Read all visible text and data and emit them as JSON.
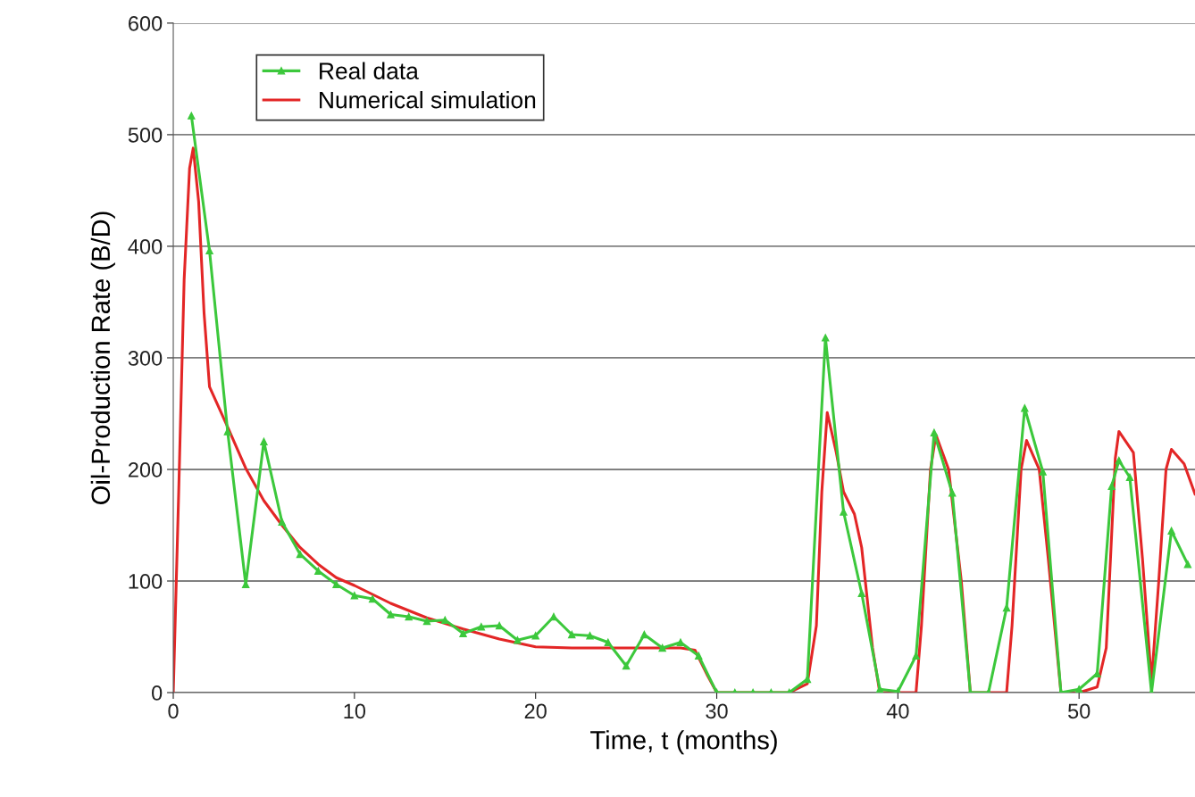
{
  "chart_data": {
    "type": "line",
    "xlabel": "Time, t (months)",
    "ylabel": "Oil-Production Rate (B/D)",
    "xlim": [
      0,
      56.4
    ],
    "xticks": [
      0,
      10,
      20,
      30,
      40,
      50
    ],
    "ylim": [
      0,
      600
    ],
    "yticks": [
      0,
      100,
      200,
      300,
      400,
      500,
      600
    ],
    "grid": "y",
    "legend": "top left",
    "series": [
      {
        "name": "Real data",
        "color": "#3cc83c",
        "marker": "triangle",
        "x": [
          1,
          2,
          3,
          4,
          5,
          6,
          7,
          8,
          9,
          10,
          11,
          12,
          13,
          14,
          15,
          16,
          17,
          18,
          19,
          20,
          21,
          22,
          23,
          24,
          25,
          26,
          27,
          28,
          29,
          30,
          31,
          32,
          33,
          34,
          35,
          36,
          37,
          38,
          39,
          40,
          41,
          42,
          43,
          44,
          45,
          46,
          47,
          48,
          49,
          50,
          51,
          51.8,
          52.2,
          52.8,
          54,
          55.1,
          56
        ],
        "values": [
          517,
          396,
          234,
          97,
          225,
          153,
          124,
          109,
          97,
          87,
          84,
          70,
          68,
          64,
          65,
          53,
          59,
          60,
          47,
          51,
          68,
          52,
          51,
          45,
          24,
          52,
          40,
          45,
          33,
          0,
          0,
          0,
          0,
          0,
          12,
          318,
          162,
          89,
          3,
          1,
          33,
          233,
          179,
          0,
          0,
          76,
          255,
          198,
          0,
          3,
          17,
          185,
          208,
          193,
          0,
          145,
          115
        ]
      },
      {
        "name": "Numerical simulation",
        "color": "#e32626",
        "marker": "none",
        "x": [
          0,
          0.3,
          0.6,
          0.9,
          1.1,
          1.4,
          1.7,
          2,
          3,
          4,
          5,
          6,
          7,
          8,
          9,
          10,
          12,
          14,
          16,
          18,
          20,
          22,
          24,
          26,
          28,
          28.8,
          29.5,
          30,
          34,
          35,
          35.5,
          35.8,
          36.1,
          36.6,
          37,
          37.6,
          38,
          38.6,
          39,
          41,
          41.3,
          41.8,
          42.1,
          42.8,
          43.5,
          44,
          46,
          46.3,
          46.8,
          47.1,
          47.8,
          48.3,
          49,
          50,
          51,
          51.5,
          52,
          52.2,
          53,
          53.5,
          54,
          54.4,
          54.8,
          55.1,
          55.8,
          56.4
        ],
        "values": [
          0,
          180,
          370,
          470,
          488,
          440,
          340,
          274,
          238,
          201,
          172,
          150,
          130,
          115,
          103,
          96,
          80,
          67,
          57,
          48,
          41,
          40,
          40,
          40,
          40,
          38,
          15,
          0,
          0,
          8,
          60,
          180,
          251,
          215,
          180,
          160,
          130,
          40,
          0,
          0,
          60,
          200,
          231,
          200,
          100,
          0,
          0,
          60,
          200,
          226,
          200,
          120,
          0,
          0,
          5,
          40,
          210,
          234,
          215,
          120,
          10,
          100,
          200,
          218,
          205,
          178
        ]
      }
    ]
  }
}
